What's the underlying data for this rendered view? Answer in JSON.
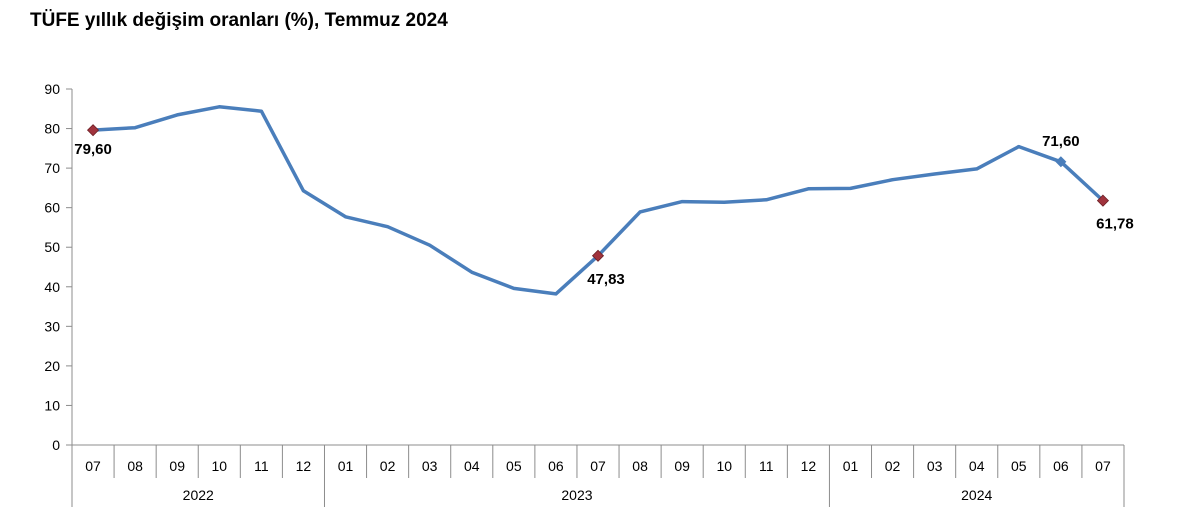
{
  "title": "TÜFE yıllık değişim oranları (%), Temmuz 2024",
  "chart_data": {
    "type": "line",
    "title": "TÜFE yıllık değişim oranları (%), Temmuz 2024",
    "categories": [
      "07",
      "08",
      "09",
      "10",
      "11",
      "12",
      "01",
      "02",
      "03",
      "04",
      "05",
      "06",
      "07",
      "08",
      "09",
      "10",
      "11",
      "12",
      "01",
      "02",
      "03",
      "04",
      "05",
      "06",
      "07"
    ],
    "year_groups": [
      {
        "label": "2022",
        "count": 6
      },
      {
        "label": "2023",
        "count": 12
      },
      {
        "label": "2024",
        "count": 7
      }
    ],
    "series": [
      {
        "values": [
          79.6,
          80.21,
          83.45,
          85.51,
          84.39,
          64.27,
          57.68,
          55.18,
          50.51,
          43.68,
          39.59,
          38.21,
          47.83,
          58.94,
          61.53,
          61.36,
          61.98,
          64.77,
          64.86,
          67.07,
          68.5,
          69.8,
          75.45,
          71.6,
          61.78
        ],
        "color": "#4A7EBB"
      }
    ],
    "data_labels": [
      {
        "index": 0,
        "text": "79,60"
      },
      {
        "index": 12,
        "text": "47,83"
      },
      {
        "index": 23,
        "text": "71,60"
      },
      {
        "index": 24,
        "text": "61,78"
      }
    ],
    "y_ticks": [
      "0",
      "10",
      "20",
      "30",
      "40",
      "50",
      "60",
      "70",
      "80",
      "90"
    ],
    "ylim": [
      0,
      90
    ],
    "grid": false,
    "marker_color": "#A0333D"
  }
}
